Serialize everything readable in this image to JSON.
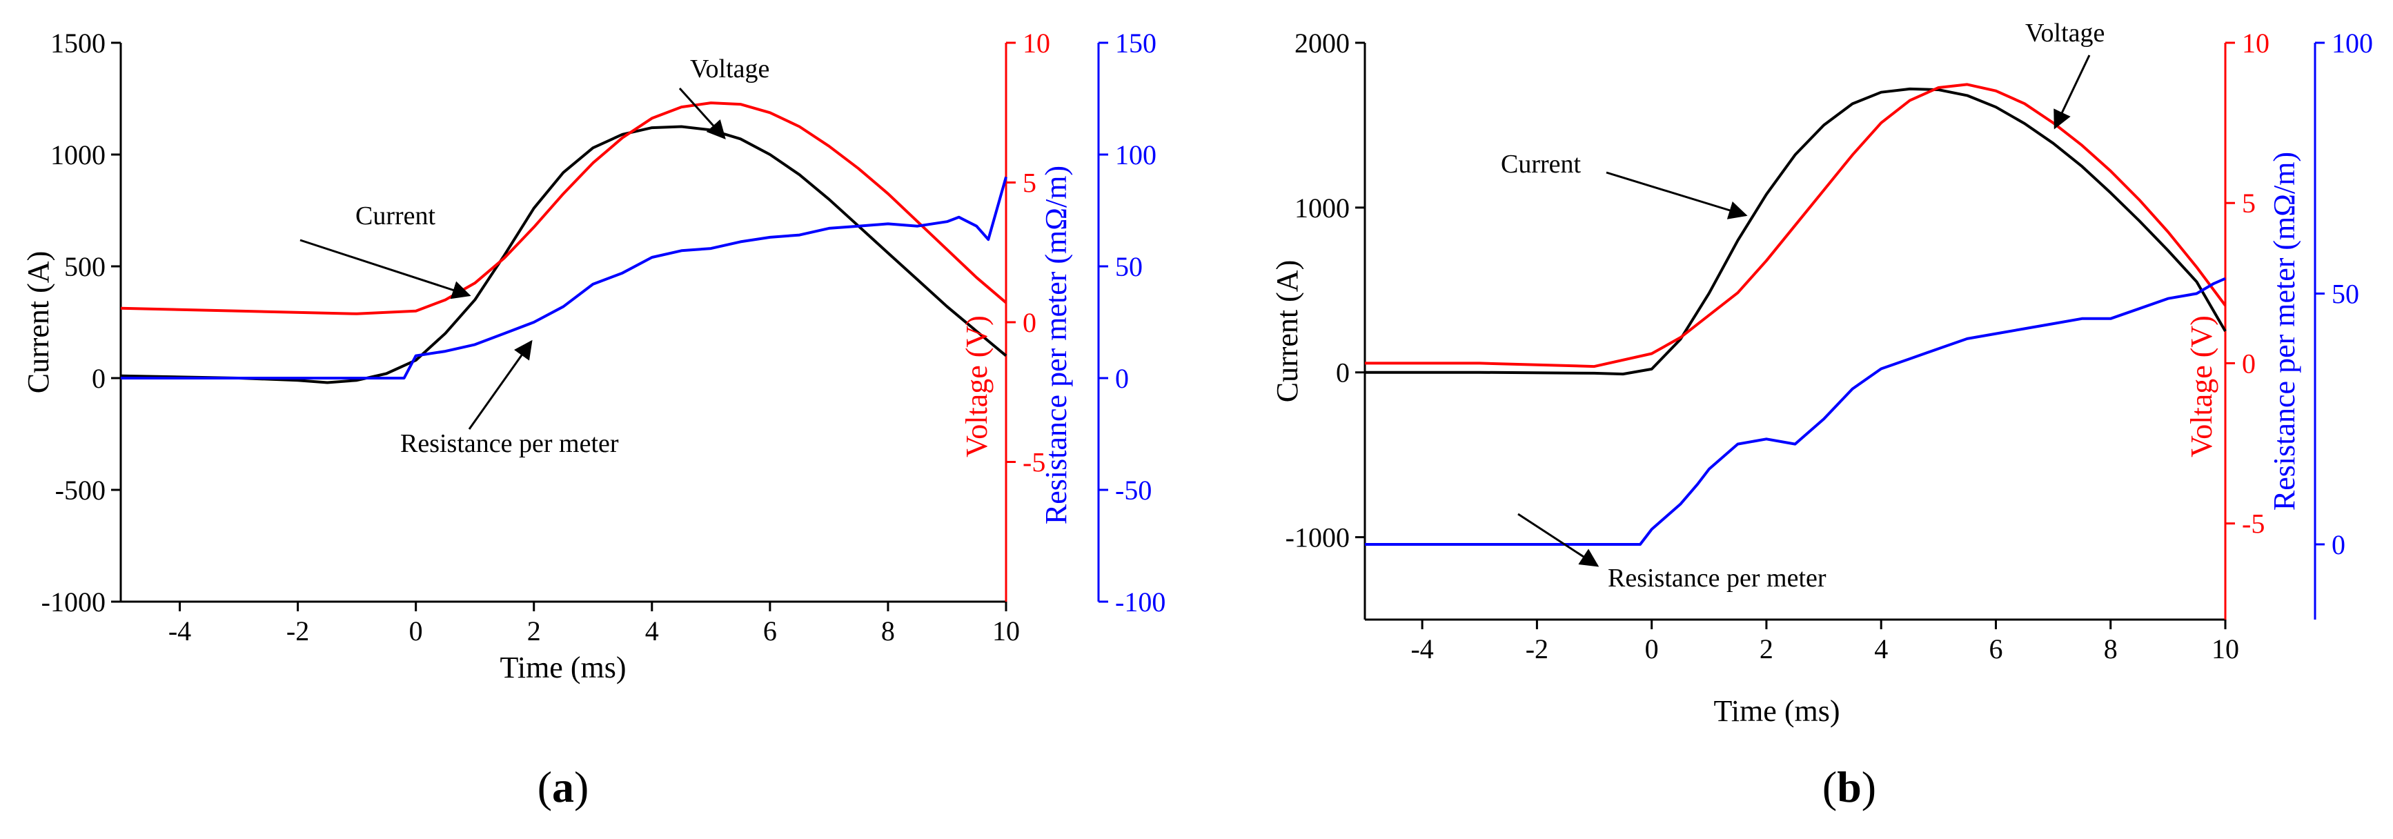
{
  "colors": {
    "current": "#000000",
    "voltage": "#ff0000",
    "resistance": "#0000ff",
    "axis": "#000000"
  },
  "chart_data": [
    {
      "type": "line",
      "panel": "a",
      "caption": {
        "open": "(",
        "letter": "a",
        "close": ")"
      },
      "xlabel": "Time (ms)",
      "ylabel_left": "Current (A)",
      "ylabel_right1": "Voltage (V)",
      "ylabel_right2": "Resistance per meter (mΩ/m)",
      "xlim": [
        -5,
        10
      ],
      "ylim_current": [
        -1000,
        1500
      ],
      "ylim_voltage": [
        -10,
        10
      ],
      "ylim_resistance": [
        -100,
        150
      ],
      "xticks": [
        -4,
        -2,
        0,
        2,
        4,
        6,
        8,
        10
      ],
      "current_ticks": [
        -1000,
        -500,
        0,
        500,
        1000,
        1500
      ],
      "voltage_ticks": [
        -5,
        0,
        5,
        10
      ],
      "resistance_ticks": [
        -100,
        -50,
        0,
        50,
        100,
        150
      ],
      "annotations": [
        {
          "text": "Voltage",
          "points_to": "voltage"
        },
        {
          "text": "Current",
          "points_to": "current"
        },
        {
          "text": "Resistance per meter",
          "points_to": "resistance"
        }
      ],
      "series": [
        {
          "name": "Current",
          "axis": "current",
          "x": [
            -5,
            -3,
            -2,
            -1.5,
            -1,
            -0.5,
            0,
            0.5,
            1,
            1.5,
            2,
            2.5,
            3,
            3.5,
            4,
            4.5,
            5,
            5.5,
            6,
            6.5,
            7,
            7.5,
            8,
            8.5,
            9,
            9.5,
            10
          ],
          "y": [
            10,
            0,
            -10,
            -20,
            -10,
            20,
            80,
            200,
            350,
            550,
            760,
            920,
            1030,
            1090,
            1120,
            1125,
            1110,
            1070,
            1000,
            910,
            800,
            680,
            560,
            440,
            320,
            210,
            100
          ]
        },
        {
          "name": "Voltage",
          "axis": "voltage",
          "x": [
            -5,
            -3,
            -1,
            0,
            0.5,
            1,
            1.5,
            2,
            2.5,
            3,
            3.5,
            4,
            4.5,
            5,
            5.5,
            6,
            6.5,
            7,
            7.5,
            8,
            8.5,
            9,
            9.5,
            10
          ],
          "y": [
            0.5,
            0.4,
            0.3,
            0.4,
            0.8,
            1.4,
            2.3,
            3.4,
            4.6,
            5.7,
            6.6,
            7.3,
            7.7,
            7.85,
            7.8,
            7.5,
            7.0,
            6.3,
            5.5,
            4.6,
            3.6,
            2.6,
            1.6,
            0.7
          ]
        },
        {
          "name": "Resistance per meter",
          "axis": "resistance",
          "x": [
            -5,
            -3,
            -1,
            -0.2,
            0,
            0.5,
            1,
            1.5,
            2,
            2.5,
            3,
            3.5,
            4,
            4.5,
            5,
            5.5,
            6,
            6.5,
            7,
            7.5,
            8,
            8.5,
            9,
            9.2,
            9.5,
            9.7,
            10
          ],
          "y": [
            0,
            0,
            0,
            0,
            10,
            12,
            15,
            20,
            25,
            32,
            42,
            47,
            54,
            57,
            58,
            61,
            63,
            64,
            67,
            68,
            69,
            68,
            70,
            72,
            68,
            62,
            90
          ]
        }
      ]
    },
    {
      "type": "line",
      "panel": "b",
      "caption": {
        "open": "(",
        "letter": "b",
        "close": ")"
      },
      "xlabel": "Time (ms)",
      "ylabel_left": "Current (A)",
      "ylabel_right1": "Voltage (V)",
      "ylabel_right2": "Resistance per meter (mΩ/m)",
      "xlim": [
        -5,
        10
      ],
      "ylim_current": [
        -1500,
        2000
      ],
      "ylim_voltage": [
        -8,
        10
      ],
      "ylim_resistance": [
        -15,
        100
      ],
      "xticks": [
        -4,
        -2,
        0,
        2,
        4,
        6,
        8,
        10
      ],
      "current_ticks": [
        -1000,
        0,
        1000,
        2000
      ],
      "voltage_ticks": [
        -5,
        0,
        5,
        10
      ],
      "resistance_ticks": [
        0,
        50,
        100
      ],
      "annotations": [
        {
          "text": "Voltage",
          "points_to": "voltage"
        },
        {
          "text": "Current",
          "points_to": "current"
        },
        {
          "text": "Resistance per meter",
          "points_to": "resistance"
        }
      ],
      "series": [
        {
          "name": "Current",
          "axis": "current",
          "x": [
            -5,
            -3,
            -1,
            -0.5,
            0,
            0.5,
            1,
            1.5,
            2,
            2.5,
            3,
            3.5,
            4,
            4.5,
            5,
            5.5,
            6,
            6.5,
            7,
            7.5,
            8,
            8.5,
            9,
            9.5,
            10
          ],
          "y": [
            0,
            0,
            -5,
            -10,
            20,
            200,
            480,
            800,
            1080,
            1320,
            1500,
            1630,
            1700,
            1720,
            1715,
            1680,
            1610,
            1510,
            1390,
            1250,
            1090,
            920,
            740,
            550,
            250
          ]
        },
        {
          "name": "Voltage",
          "axis": "voltage",
          "x": [
            -5,
            -3,
            -1,
            0,
            0.5,
            1,
            1.5,
            2,
            2.5,
            3,
            3.5,
            4,
            4.5,
            5,
            5.5,
            6,
            6.5,
            7,
            7.5,
            8,
            8.5,
            9,
            9.5,
            10
          ],
          "y": [
            0,
            0,
            -0.1,
            0.3,
            0.8,
            1.5,
            2.2,
            3.2,
            4.3,
            5.4,
            6.5,
            7.5,
            8.2,
            8.6,
            8.7,
            8.5,
            8.1,
            7.5,
            6.8,
            6.0,
            5.1,
            4.1,
            3.0,
            1.8
          ]
        },
        {
          "name": "Resistance per meter",
          "axis": "resistance",
          "x": [
            -5,
            -3,
            -1,
            -0.2,
            0,
            0.5,
            0.8,
            1,
            1.5,
            2,
            2.5,
            3,
            3.5,
            4,
            4.5,
            5,
            5.5,
            6,
            6.5,
            7,
            7.5,
            8,
            8.5,
            9,
            9.5,
            9.8,
            10
          ],
          "y": [
            0,
            0,
            0,
            0,
            3,
            8,
            12,
            15,
            20,
            21,
            20,
            25,
            31,
            35,
            37,
            39,
            41,
            42,
            43,
            44,
            45,
            45,
            47,
            49,
            50,
            52,
            53
          ]
        }
      ]
    }
  ]
}
